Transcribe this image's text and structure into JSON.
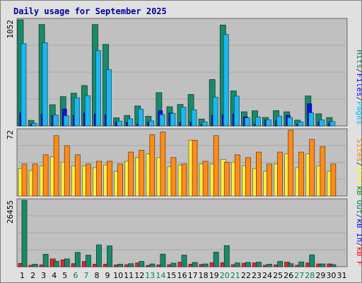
{
  "chart_data": {
    "type": "bar",
    "title": "Daily usage for September 2025",
    "days": [
      "1",
      "2",
      "3",
      "4",
      "5",
      "6",
      "7",
      "8",
      "9",
      "10",
      "11",
      "12",
      "13",
      "14",
      "15",
      "16",
      "17",
      "18",
      "19",
      "20",
      "21",
      "22",
      "23",
      "24",
      "25",
      "26",
      "27",
      "28",
      "29",
      "30",
      "31"
    ],
    "weekend_days": [
      6,
      7,
      13,
      14,
      20,
      21,
      27,
      28
    ],
    "panels": [
      {
        "id": "traffic",
        "ymax_label": "1052",
        "ymax": 1052,
        "legend": [
          "Pages",
          "/",
          "Files",
          "/",
          "Hits"
        ],
        "legend_colors": [
          "#00bfff",
          "#404040",
          "#0000ff",
          "#404040",
          "#008060"
        ],
        "series": [
          {
            "name": "Hits",
            "color": "#1a8a6a",
            "values": [
              1052,
              55,
              1005,
              210,
              290,
              325,
              400,
              1005,
              808,
              80,
              104,
              198,
              95,
              330,
              190,
              213,
              312,
              68,
              460,
              1000,
              347,
              140,
              150,
              84,
              152,
              140,
              57,
              297,
              120,
              83,
              0
            ]
          },
          {
            "name": "Files",
            "color": "#1212e6",
            "values": [
              130,
              15,
              117,
              100,
              168,
              105,
              128,
              118,
              110,
              42,
              34,
              20,
              40,
              150,
              128,
              35,
              40,
              13,
              105,
              110,
              120,
              90,
              15,
              60,
              53,
              105,
              18,
              220,
              40,
              33,
              0
            ]
          },
          {
            "name": "Pages",
            "color": "#1cb8f0",
            "values": [
              815,
              27,
              825,
              108,
              100,
              280,
              300,
              747,
              557,
              48,
              70,
              167,
              50,
              112,
              125,
              185,
              160,
              40,
              285,
              907,
              295,
              80,
              88,
              62,
              97,
              83,
              40,
              130,
              60,
              43,
              0
            ]
          }
        ]
      },
      {
        "id": "visitors",
        "ymax_label": "72",
        "ymax": 72,
        "legend": [
          "Visits",
          "/",
          "Sites"
        ],
        "legend_colors": [
          "#ffff00",
          "#404040",
          "#ff8000"
        ],
        "series": [
          {
            "name": "Visits",
            "color": "#ffee44",
            "values": [
              30,
              28,
              33,
              43,
              37,
              33,
              33,
              31,
              34,
              27,
              38,
              42,
              46,
              42,
              32,
              34,
              61,
              35,
              35,
              40,
              37,
              33,
              30,
              27,
              35,
              46,
              31,
              46,
              33,
              27,
              0
            ]
          },
          {
            "name": "Sites",
            "color": "#ff8c1a",
            "values": [
              35,
              35,
              45,
              66,
              55,
              45,
              35,
              38,
              38,
              35,
              48,
              50,
              67,
              70,
              42,
              35,
              61,
              38,
              66,
              37,
              45,
              42,
              48,
              35,
              48,
              72,
              48,
              62,
              54,
              35,
              0
            ]
          }
        ]
      },
      {
        "id": "kbytes",
        "ymax_label": "26455",
        "ymax": 26455,
        "legend": [
          "kB F",
          "/",
          "kB In",
          "/",
          "kB Out"
        ],
        "legend_colors": [
          "#ff0000",
          "#404040",
          "#0000ff",
          "#404040",
          "#008060"
        ],
        "series": [
          {
            "name": "kB F",
            "color": "#e02828",
            "values": [
              1300,
              600,
              700,
              3100,
              2700,
              1200,
              2100,
              1000,
              1000,
              700,
              800,
              1500,
              500,
              700,
              800,
              1800,
              1000,
              900,
              1600,
              1600,
              800,
              1400,
              1500,
              600,
              700,
              1800,
              600,
              1500,
              1100,
              1100,
              0
            ]
          },
          {
            "name": "kB Out",
            "color": "#1a8a6a",
            "values": [
              26455,
              1000,
              4950,
              2200,
              3100,
              5700,
              4600,
              8700,
              8300,
              1000,
              1200,
              2100,
              1100,
              5000,
              1400,
              4600,
              1700,
              1100,
              5800,
              8400,
              1500,
              1700,
              1800,
              1000,
              2100,
              1200,
              1900,
              4700,
              1100,
              800,
              0
            ]
          }
        ]
      }
    ],
    "grid": true
  }
}
